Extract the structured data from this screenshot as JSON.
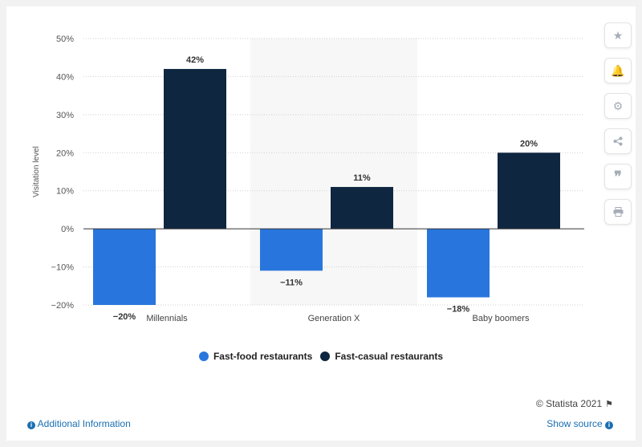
{
  "chart_data": {
    "type": "bar",
    "categories": [
      "Millennials",
      "Generation X",
      "Baby boomers"
    ],
    "series": [
      {
        "name": "Fast-food restaurants",
        "values": [
          -20,
          -11,
          -18
        ],
        "color": "#2876dd"
      },
      {
        "name": "Fast-casual restaurants",
        "values": [
          42,
          11,
          20
        ],
        "color": "#0f2641"
      }
    ],
    "data_labels": [
      [
        "-20%",
        "-11%",
        "-18%"
      ],
      [
        "42%",
        "11%",
        "20%"
      ]
    ],
    "ylabel": "Visitation level",
    "ylim": [
      -20,
      50
    ],
    "yticks": [
      "-20%",
      "-10%",
      "0%",
      "10%",
      "20%",
      "30%",
      "40%",
      "50%"
    ],
    "ytick_values": [
      -20,
      -10,
      0,
      10,
      20,
      30,
      40,
      50
    ],
    "grid": true,
    "highlighted_category": "Generation X",
    "legend_position": "bottom"
  },
  "toolbar": {
    "icons": [
      "star-icon",
      "bell-icon",
      "gear-icon",
      "share-icon",
      "quote-icon",
      "print-icon"
    ]
  },
  "footer": {
    "credit": "© Statista 2021",
    "additional_info": "Additional Information",
    "show_source": "Show source"
  }
}
